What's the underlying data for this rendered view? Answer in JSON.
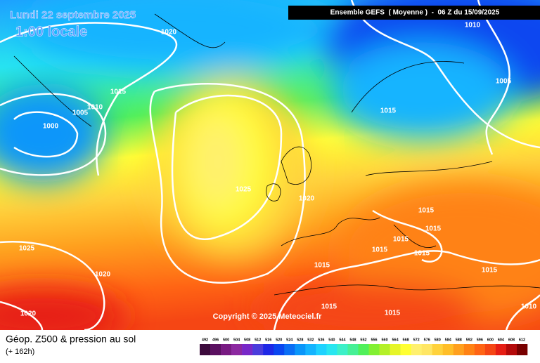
{
  "header": {
    "title": "Lundi 22 septembre 2025",
    "subtitle": "1:00 locale",
    "run": "Ensemble GEFS  ( Moyenne )  -  06 Z du 15/09/2025"
  },
  "isobar_labels": [
    "1020",
    "1010",
    "1015",
    "1010",
    "1005",
    "1000",
    "1005",
    "1015",
    "1025",
    "1020",
    "1015",
    "1015",
    "1015",
    "1015",
    "1015",
    "1015",
    "1015",
    "1025",
    "1020",
    "1020",
    "1015",
    "1015",
    "1010"
  ],
  "copyright": "Copyright © 2025 Meteociel.fr",
  "footer": {
    "title": "Géop. Z500 & pression au sol",
    "lead": "(+ 162h)"
  },
  "scale": {
    "labels": [
      492,
      496,
      500,
      504,
      508,
      512,
      516,
      520,
      524,
      528,
      532,
      536,
      540,
      544,
      548,
      552,
      556,
      560,
      564,
      568,
      572,
      576,
      580,
      584,
      588,
      592,
      596,
      600,
      604,
      608,
      612
    ],
    "colors": [
      "#3c0a3c",
      "#5a1060",
      "#781a82",
      "#8c28a0",
      "#7828c8",
      "#4a3cdc",
      "#1e28e6",
      "#0a46f0",
      "#0a6ef5",
      "#0a96fa",
      "#14b4ff",
      "#1ed2ff",
      "#28e6f0",
      "#3cf0c8",
      "#46f096",
      "#50f05a",
      "#82f032",
      "#b4f028",
      "#e6f528",
      "#ffff32",
      "#fff06e",
      "#ffe664",
      "#ffd23c",
      "#ffbe28",
      "#ffa01e",
      "#ff8214",
      "#ff6414",
      "#f54614",
      "#e61e14",
      "#b40a0a",
      "#780000"
    ]
  }
}
